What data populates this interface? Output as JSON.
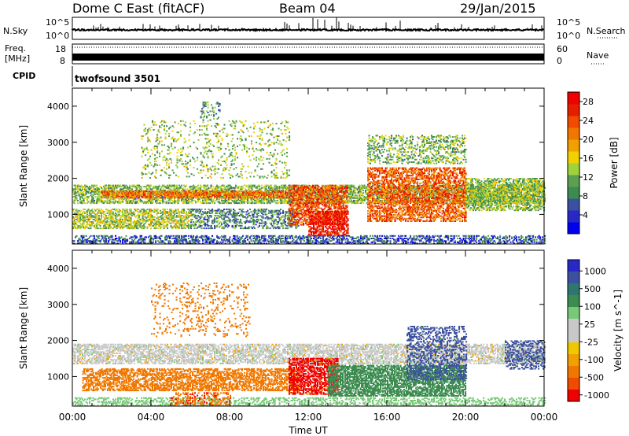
{
  "header": {
    "site": "Dome C East (fitACF)",
    "beam": "Beam 04",
    "date": "29/Jan/2015"
  },
  "strips": {
    "nsky_label": "N.Sky",
    "nsky_ticks": [
      "10^5",
      "10^0"
    ],
    "nsearch_label": "N.Search",
    "freq_label_1": "Freq.",
    "freq_label_2": "[MHz]",
    "freq_ticks": [
      "18",
      "8"
    ],
    "nave_ticks": [
      "60",
      "0"
    ],
    "nave_label": "Nave",
    "cpid_label": "CPID",
    "cpid_value": "twofsound 3501"
  },
  "colors": {
    "power": [
      "#0000f0",
      "#2828c8",
      "#3c50a0",
      "#3c8c50",
      "#5aa050",
      "#a0d23c",
      "#f0d200",
      "#f0a000",
      "#f07800",
      "#f04b00",
      "#e61e00",
      "#f00000"
    ],
    "velocity": [
      "#f00000",
      "#f04b00",
      "#f07800",
      "#f0a000",
      "#f0c800",
      "#c8c8c8",
      "#c8c8c8",
      "#78c878",
      "#3c8c50",
      "#2d786e",
      "#3c50a0",
      "#2828c8"
    ]
  },
  "chart_data": [
    {
      "type": "heatmap",
      "title": "Power",
      "ylabel": "Slant Range [km]",
      "ylim": [
        180,
        4500
      ],
      "yticks": [
        1000,
        2000,
        3000,
        4000
      ],
      "xlim": [
        0,
        24
      ],
      "xticks": [
        "00:00",
        "04:00",
        "08:00",
        "12:00",
        "16:00",
        "20:00",
        "00:00"
      ],
      "colorbar_label": "Power [dB]",
      "colorbar_ticks": [
        "4",
        "8",
        "12",
        "16",
        "20",
        "24",
        "28"
      ],
      "colorbar_range": [
        0,
        30
      ],
      "regions": [
        {
          "t0": 0.0,
          "t1": 24.0,
          "r0": 1300,
          "r1": 1800,
          "value": 12,
          "density": 0.55
        },
        {
          "t0": 1.5,
          "t1": 11.0,
          "r0": 1450,
          "r1": 1650,
          "value": 22,
          "density": 0.7
        },
        {
          "t0": 0.0,
          "t1": 6.0,
          "r0": 600,
          "r1": 1150,
          "value": 14,
          "density": 0.55
        },
        {
          "t0": 6.0,
          "t1": 11.5,
          "r0": 600,
          "r1": 1150,
          "value": 9,
          "density": 0.4
        },
        {
          "t0": 11.0,
          "t1": 14.0,
          "r0": 700,
          "r1": 1800,
          "value": 24,
          "density": 0.55
        },
        {
          "t0": 12.0,
          "t1": 14.0,
          "r0": 400,
          "r1": 1100,
          "value": 28,
          "density": 0.6
        },
        {
          "t0": 15.0,
          "t1": 20.0,
          "r0": 800,
          "r1": 2300,
          "value": 23,
          "density": 0.55
        },
        {
          "t0": 15.0,
          "t1": 20.0,
          "r0": 2400,
          "r1": 3200,
          "value": 12,
          "density": 0.3
        },
        {
          "t0": 20.0,
          "t1": 24.0,
          "r0": 1100,
          "r1": 2000,
          "value": 13,
          "density": 0.55
        },
        {
          "t0": 0.0,
          "t1": 24.0,
          "r0": 180,
          "r1": 420,
          "value": 6,
          "density": 0.45
        },
        {
          "t0": 3.5,
          "t1": 11.0,
          "r0": 2000,
          "r1": 3600,
          "value": 13,
          "density": 0.12
        },
        {
          "t0": 6.5,
          "t1": 7.5,
          "r0": 3600,
          "r1": 4100,
          "value": 10,
          "density": 0.2
        }
      ]
    },
    {
      "type": "heatmap",
      "title": "Velocity",
      "ylabel": "Slant Range [km]",
      "ylim": [
        180,
        4500
      ],
      "yticks": [
        1000,
        2000,
        3000,
        4000
      ],
      "xlim": [
        0,
        24
      ],
      "xticks": [
        "00:00",
        "04:00",
        "08:00",
        "12:00",
        "16:00",
        "20:00",
        "00:00"
      ],
      "xlabel": "Time UT",
      "colorbar_label": "Velocity [m s^-1]",
      "colorbar_ticks": [
        "1000",
        "500",
        "100",
        "25",
        "-25",
        "-100",
        "-500",
        "-1000"
      ],
      "regions": [
        {
          "t0": 0.0,
          "t1": 24.0,
          "r0": 1350,
          "r1": 1900,
          "value": 0,
          "density": 0.55
        },
        {
          "t0": 0.5,
          "t1": 11.5,
          "r0": 600,
          "r1": 1200,
          "value": -300,
          "density": 0.55
        },
        {
          "t0": 11.0,
          "t1": 13.5,
          "r0": 500,
          "r1": 1500,
          "value": -700,
          "density": 0.6
        },
        {
          "t0": 13.0,
          "t1": 20.0,
          "r0": 450,
          "r1": 1300,
          "value": 300,
          "density": 0.65
        },
        {
          "t0": 17.0,
          "t1": 20.0,
          "r0": 900,
          "r1": 2400,
          "value": 800,
          "density": 0.35
        },
        {
          "t0": 22.0,
          "t1": 24.0,
          "r0": 1200,
          "r1": 2000,
          "value": 800,
          "density": 0.35
        },
        {
          "t0": 4.0,
          "t1": 9.0,
          "r0": 2100,
          "r1": 3600,
          "value": -200,
          "density": 0.12
        },
        {
          "t0": 0.0,
          "t1": 24.0,
          "r0": 180,
          "r1": 420,
          "value": 60,
          "density": 0.35
        },
        {
          "t0": 5.0,
          "t1": 8.0,
          "r0": 180,
          "r1": 550,
          "value": -400,
          "density": 0.35
        }
      ]
    }
  ]
}
